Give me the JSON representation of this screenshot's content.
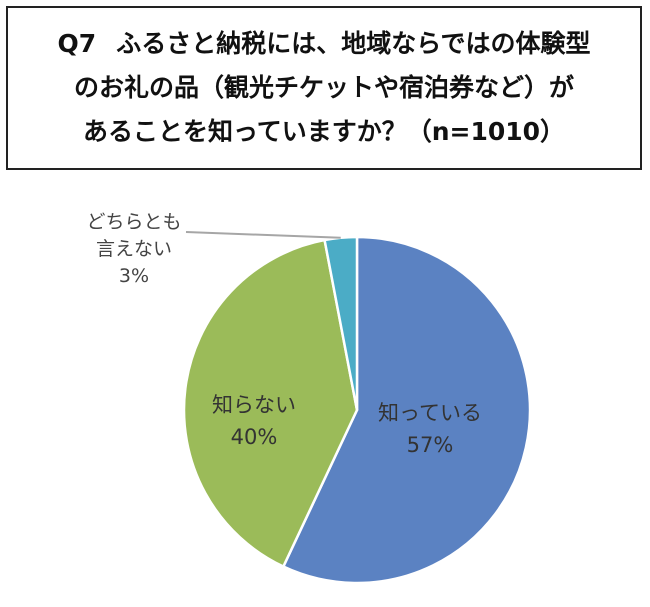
{
  "question": {
    "number": "Q7",
    "line1": "ふるさと納税には、地域ならではの体験型",
    "line2": "のお礼の品（観光チケットや宿泊券など）が",
    "line3": "あることを知っていますか？（n=1010）"
  },
  "chart_data": {
    "type": "pie",
    "title": "",
    "start_angle_deg": 0,
    "direction": "clockwise",
    "slices": [
      {
        "label": "知っている",
        "value": 57,
        "value_label": "57%",
        "color": "#5B82C2"
      },
      {
        "label": "知らない",
        "value": 40,
        "value_label": "40%",
        "color": "#9BBB59"
      },
      {
        "label_lines": [
          "どちらとも",
          "言えない"
        ],
        "value": 3,
        "value_label": "3%",
        "color": "#4BACC6",
        "leader_line": true
      }
    ],
    "slice_border_color": "#ffffff",
    "leader_line_color": "#A6A6A6"
  }
}
